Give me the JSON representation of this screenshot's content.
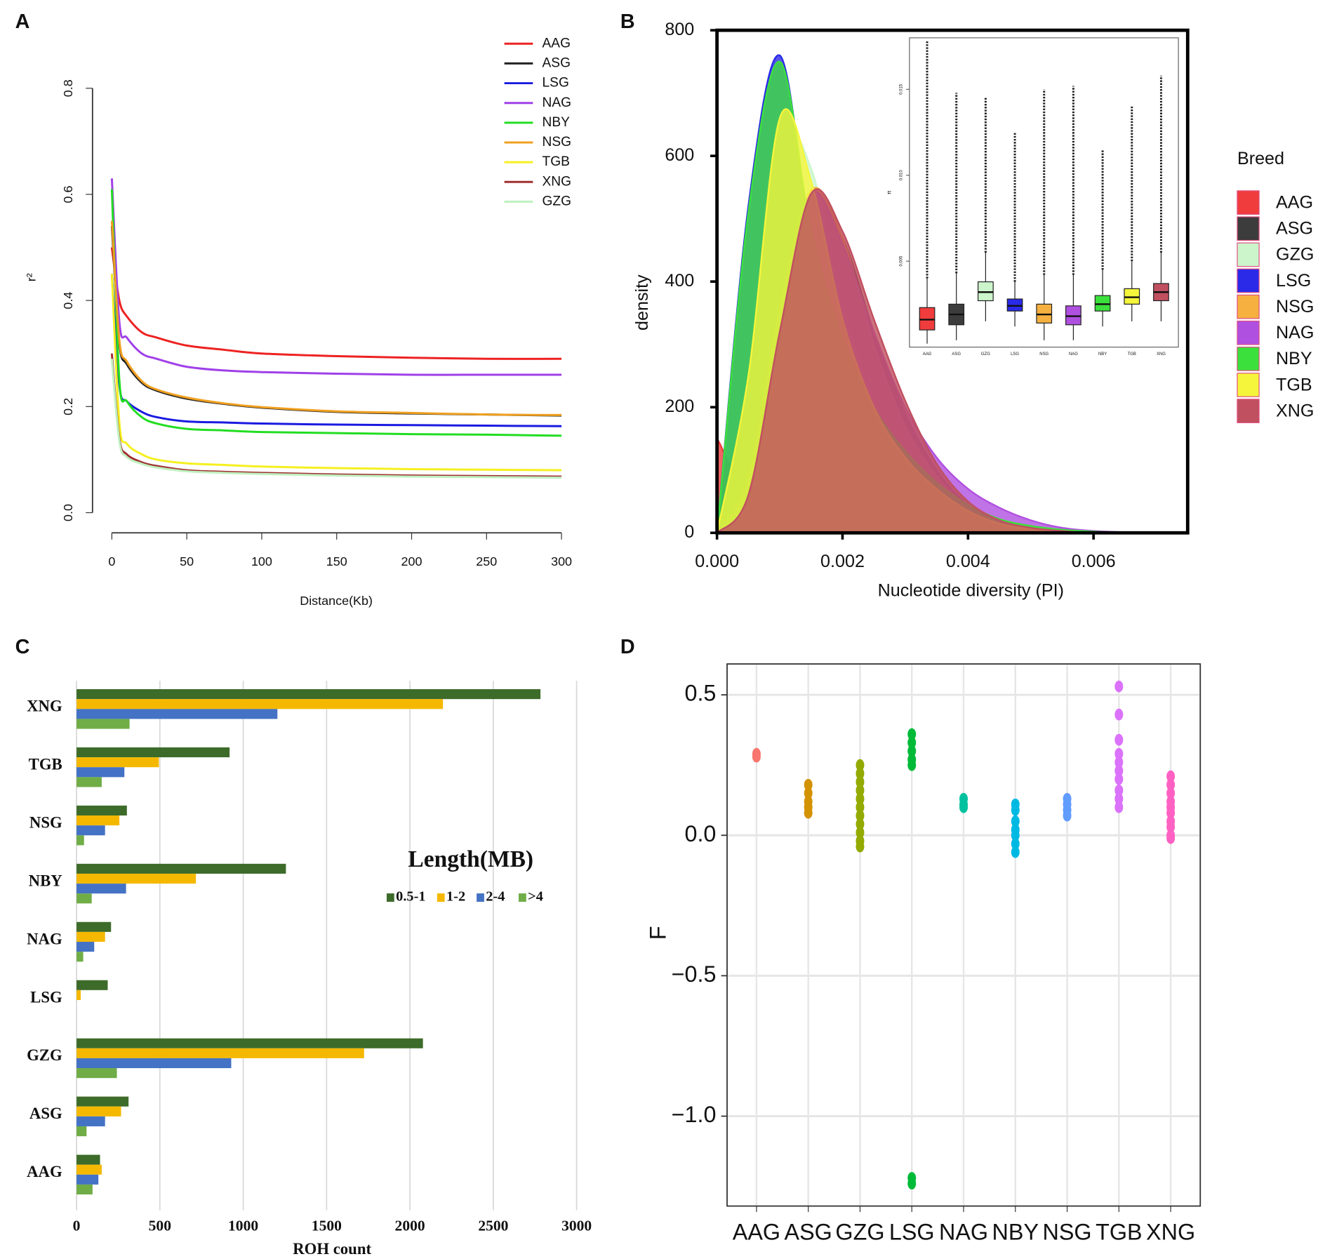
{
  "chart_data": [
    {
      "type": "line",
      "panel": "A",
      "xlabel": "Distance(Kb)",
      "ylabel": "r²",
      "x": [
        0,
        5,
        10,
        20,
        30,
        50,
        75,
        100,
        150,
        200,
        250,
        300
      ],
      "xlim": [
        0,
        300
      ],
      "ylim": [
        0,
        0.8
      ],
      "xticks": [
        0,
        50,
        100,
        150,
        200,
        250,
        300
      ],
      "yticks": [
        {
          "value": 0,
          "label": "0.0"
        },
        0.2,
        0.4,
        0.6,
        0.8
      ],
      "series": [
        {
          "name": "AAG",
          "color": "#ee2222",
          "values": [
            0.5,
            0.4,
            0.37,
            0.34,
            0.33,
            0.315,
            0.307,
            0.3,
            0.295,
            0.292,
            0.29,
            0.29
          ]
        },
        {
          "name": "ASG",
          "color": "#222222",
          "values": [
            0.54,
            0.32,
            0.28,
            0.245,
            0.23,
            0.215,
            0.205,
            0.198,
            0.19,
            0.187,
            0.185,
            0.183
          ]
        },
        {
          "name": "LSG",
          "color": "#1a1ae0",
          "values": [
            0.45,
            0.24,
            0.21,
            0.19,
            0.18,
            0.172,
            0.17,
            0.168,
            0.166,
            0.165,
            0.164,
            0.163
          ]
        },
        {
          "name": "NAG",
          "color": "#a040e8",
          "values": [
            0.63,
            0.36,
            0.33,
            0.3,
            0.29,
            0.275,
            0.268,
            0.265,
            0.262,
            0.26,
            0.26,
            0.26
          ]
        },
        {
          "name": "NBY",
          "color": "#22dd22",
          "values": [
            0.61,
            0.25,
            0.21,
            0.18,
            0.168,
            0.158,
            0.155,
            0.152,
            0.15,
            0.148,
            0.147,
            0.145
          ]
        },
        {
          "name": "NSG",
          "color": "#f0a020",
          "values": [
            0.55,
            0.325,
            0.285,
            0.248,
            0.232,
            0.217,
            0.206,
            0.199,
            0.191,
            0.188,
            0.185,
            0.184
          ]
        },
        {
          "name": "TGB",
          "color": "#f5f020",
          "values": [
            0.45,
            0.17,
            0.13,
            0.11,
            0.1,
            0.093,
            0.09,
            0.087,
            0.084,
            0.082,
            0.081,
            0.08
          ]
        },
        {
          "name": "XNG",
          "color": "#a03030",
          "values": [
            0.3,
            0.14,
            0.11,
            0.095,
            0.088,
            0.08,
            0.077,
            0.075,
            0.072,
            0.07,
            0.069,
            0.068
          ]
        },
        {
          "name": "GZG",
          "color": "#bff0bf",
          "values": [
            0.29,
            0.135,
            0.105,
            0.092,
            0.085,
            0.078,
            0.075,
            0.073,
            0.07,
            0.068,
            0.067,
            0.066
          ]
        }
      ]
    },
    {
      "type": "area",
      "panel": "B",
      "xlabel": "Nucleotide diversity (PI)",
      "ylabel": "density",
      "legend_title": "Breed",
      "x": [
        0,
        0.0005,
        0.001,
        0.0015,
        0.002,
        0.0025,
        0.003,
        0.0035,
        0.004,
        0.0045,
        0.005,
        0.0055,
        0.006,
        0.0065,
        0.007
      ],
      "xlim": [
        0,
        0.0075
      ],
      "ylim": [
        0,
        800
      ],
      "xticks": [
        {
          "value": 0,
          "label": "0.000"
        },
        0.002,
        0.004,
        0.006
      ],
      "yticks": [
        0,
        200,
        400,
        600,
        800
      ],
      "series": [
        {
          "name": "AAG",
          "color": "#f03c3c",
          "values": [
            150,
            90,
            330,
            540,
            460,
            320,
            190,
            100,
            45,
            18,
            7,
            2,
            0,
            0,
            0
          ]
        },
        {
          "name": "ASG",
          "color": "#3c3c3c",
          "values": [
            0,
            70,
            340,
            530,
            470,
            320,
            190,
            100,
            45,
            18,
            7,
            2,
            0,
            0,
            0
          ]
        },
        {
          "name": "GZG",
          "color": "#ccf5cc",
          "values": [
            0,
            230,
            620,
            580,
            360,
            210,
            125,
            70,
            35,
            15,
            6,
            2,
            0,
            0,
            0
          ]
        },
        {
          "name": "LSG",
          "color": "#2a2ae8",
          "values": [
            0,
            520,
            760,
            470,
            300,
            190,
            120,
            70,
            40,
            20,
            10,
            4,
            2,
            0,
            0
          ]
        },
        {
          "name": "NSG",
          "color": "#f5b040",
          "values": [
            0,
            80,
            350,
            545,
            470,
            300,
            170,
            90,
            40,
            15,
            5,
            2,
            0,
            0,
            0
          ]
        },
        {
          "name": "NAG",
          "color": "#b050e0",
          "values": [
            0,
            90,
            360,
            540,
            460,
            320,
            200,
            120,
            70,
            40,
            20,
            8,
            3,
            1,
            0
          ]
        },
        {
          "name": "NBY",
          "color": "#3ce03c",
          "values": [
            0,
            510,
            750,
            480,
            310,
            200,
            130,
            80,
            45,
            22,
            11,
            5,
            2,
            0,
            0
          ]
        },
        {
          "name": "TGB",
          "color": "#f5f53c",
          "values": [
            0,
            250,
            660,
            560,
            340,
            200,
            120,
            70,
            35,
            15,
            6,
            2,
            0,
            0,
            0
          ]
        },
        {
          "name": "XNG",
          "color": "#c05060",
          "values": [
            0,
            60,
            320,
            540,
            480,
            340,
            210,
            110,
            50,
            20,
            8,
            3,
            0,
            0,
            0
          ]
        }
      ]
    },
    {
      "type": "box",
      "ylabel": "π",
      "categories": [
        "AAG",
        "ASG",
        "GZG",
        "LSG",
        "NSG",
        "NAG",
        "NBY",
        "TGB",
        "XNG"
      ],
      "colors": [
        "#f03c3c",
        "#3c3c3c",
        "#ccf5cc",
        "#2a2ae8",
        "#f5b040",
        "#b050e0",
        "#3ce03c",
        "#f5f53c",
        "#c05060"
      ],
      "ylim": [
        0,
        0.018
      ],
      "yticks": [
        0.005,
        {
          "value": 0.01,
          "label": "0.010"
        },
        0.015
      ],
      "whisker_low": [
        0.0002,
        0.0004,
        0.0015,
        0.0012,
        0.0004,
        0.0004,
        0.0012,
        0.0015,
        0.0015
      ],
      "q1": [
        0.001,
        0.0013,
        0.0027,
        0.0021,
        0.0014,
        0.0013,
        0.0021,
        0.0025,
        0.0027
      ],
      "median": [
        0.0016,
        0.0019,
        0.0032,
        0.0024,
        0.0019,
        0.0018,
        0.0025,
        0.0029,
        0.0032
      ],
      "q3": [
        0.0023,
        0.0025,
        0.0038,
        0.0028,
        0.0025,
        0.0024,
        0.003,
        0.0034,
        0.0037
      ],
      "whisker_high": [
        0.004,
        0.0043,
        0.0055,
        0.0038,
        0.0042,
        0.0042,
        0.0045,
        0.005,
        0.0055
      ],
      "max": [
        0.0178,
        0.0148,
        0.0145,
        0.0125,
        0.015,
        0.0152,
        0.0115,
        0.014,
        0.0158
      ]
    },
    {
      "type": "barh",
      "panel": "C",
      "xlabel": "ROH count",
      "legend_title": "Length(MB)",
      "categories": [
        "AAG",
        "ASG",
        "GZG",
        "LSG",
        "NAG",
        "NBY",
        "NSG",
        "TGB",
        "XNG"
      ],
      "xlim": [
        0,
        3000
      ],
      "xticks": [
        0,
        500,
        1000,
        1500,
        2000,
        2500,
        3000
      ],
      "grid": true,
      "series": [
        {
          "name": "0.5-1",
          "color": "#3d6b2a",
          "values": [
            141,
            312,
            2078,
            187,
            207,
            1256,
            302,
            918,
            2783
          ]
        },
        {
          "name": "1-2",
          "color": "#f5b800",
          "values": [
            151,
            267,
            1725,
            25,
            171,
            716,
            257,
            494,
            2198
          ]
        },
        {
          "name": "2-4",
          "color": "#4472c4",
          "values": [
            131,
            171,
            928,
            0,
            106,
            297,
            171,
            287,
            1205
          ]
        },
        {
          "name": ">4",
          "color": "#70ad47",
          "values": [
            96,
            60,
            242,
            0,
            40,
            91,
            45,
            151,
            318
          ]
        }
      ]
    },
    {
      "type": "strip",
      "panel": "D",
      "ylabel": "F",
      "ylim": [
        -1.32,
        0.61
      ],
      "yticks": [
        {
          "value": -1,
          "label": "−1.0"
        },
        {
          "value": -0.5,
          "label": "−0.5"
        },
        {
          "value": 0,
          "label": "0.0"
        },
        0.5
      ],
      "grid": true,
      "series": [
        {
          "name": "AAG",
          "color": "#f8766d",
          "values": [
            0.28,
            0.29
          ]
        },
        {
          "name": "ASG",
          "color": "#d39200",
          "values": [
            0.18,
            0.15,
            0.12,
            0.1,
            0.08
          ]
        },
        {
          "name": "GZG",
          "color": "#93aa00",
          "values": [
            0.25,
            0.22,
            0.19,
            0.16,
            0.13,
            0.1,
            0.07,
            0.04,
            0.01,
            -0.02,
            -0.04
          ]
        },
        {
          "name": "LSG",
          "color": "#00ba38",
          "values": [
            0.36,
            0.33,
            0.3,
            0.27,
            0.25,
            -1.22,
            -1.24
          ]
        },
        {
          "name": "NAG",
          "color": "#00c19f",
          "values": [
            0.13,
            0.11,
            0.1
          ]
        },
        {
          "name": "NBY",
          "color": "#00b9e3",
          "values": [
            0.11,
            0.09,
            0.05,
            0.02,
            0,
            -0.03,
            -0.06
          ]
        },
        {
          "name": "NSG",
          "color": "#619cff",
          "values": [
            0.13,
            0.11,
            0.09,
            0.07
          ]
        },
        {
          "name": "TGB",
          "color": "#db72fb",
          "values": [
            0.53,
            0.43,
            0.34,
            0.29,
            0.26,
            0.23,
            0.2,
            0.16,
            0.13,
            0.1
          ]
        },
        {
          "name": "XNG",
          "color": "#ff61c3",
          "values": [
            0.21,
            0.18,
            0.15,
            0.12,
            0.1,
            0.08,
            0.05,
            0.03,
            0,
            -0.01
          ]
        }
      ]
    }
  ]
}
